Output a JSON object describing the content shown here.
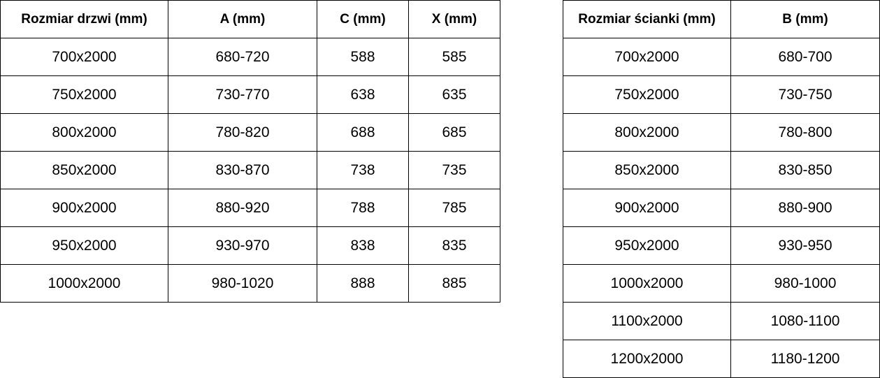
{
  "doors_table": {
    "headers": [
      "Rozmiar drzwi (mm)",
      "A (mm)",
      "C (mm)",
      "X (mm)"
    ],
    "rows": [
      [
        "700x2000",
        "680-720",
        "588",
        "585"
      ],
      [
        "750x2000",
        "730-770",
        "638",
        "635"
      ],
      [
        "800x2000",
        "780-820",
        "688",
        "685"
      ],
      [
        "850x2000",
        "830-870",
        "738",
        "735"
      ],
      [
        "900x2000",
        "880-920",
        "788",
        "785"
      ],
      [
        "950x2000",
        "930-970",
        "838",
        "835"
      ],
      [
        "1000x2000",
        "980-1020",
        "888",
        "885"
      ]
    ]
  },
  "walls_table": {
    "headers": [
      "Rozmiar ścianki (mm)",
      "B (mm)"
    ],
    "rows": [
      [
        "700x2000",
        "680-700"
      ],
      [
        "750x2000",
        "730-750"
      ],
      [
        "800x2000",
        "780-800"
      ],
      [
        "850x2000",
        "830-850"
      ],
      [
        "900x2000",
        "880-900"
      ],
      [
        "950x2000",
        "930-950"
      ],
      [
        "1000x2000",
        "980-1000"
      ],
      [
        "1100x2000",
        "1080-1100"
      ],
      [
        "1200x2000",
        "1180-1200"
      ]
    ]
  }
}
